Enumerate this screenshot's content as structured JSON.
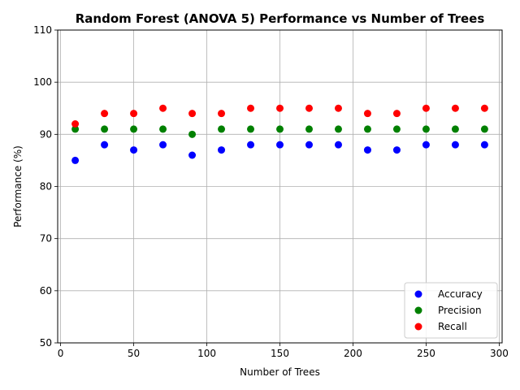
{
  "chart_data": {
    "type": "scatter",
    "title": "Random Forest (ANOVA 5) Performance vs Number of Trees",
    "xlabel": "Number of Trees",
    "ylabel": "Performance (%)",
    "xlim": [
      -2,
      302
    ],
    "ylim": [
      50,
      110
    ],
    "xticks": [
      0,
      50,
      100,
      150,
      200,
      250,
      300
    ],
    "yticks": [
      50,
      60,
      70,
      80,
      90,
      100,
      110
    ],
    "grid": true,
    "legend_position": "lower-right",
    "x": [
      10,
      30,
      50,
      70,
      90,
      110,
      130,
      150,
      170,
      190,
      210,
      230,
      250,
      270,
      290
    ],
    "series": [
      {
        "name": "Accuracy",
        "color": "#0000ff",
        "values": [
          85,
          88,
          87,
          88,
          86,
          87,
          88,
          88,
          88,
          88,
          87,
          87,
          88,
          88,
          88
        ]
      },
      {
        "name": "Precision",
        "color": "#008000",
        "values": [
          91,
          91,
          91,
          91,
          90,
          91,
          91,
          91,
          91,
          91,
          91,
          91,
          91,
          91,
          91
        ]
      },
      {
        "name": "Recall",
        "color": "#ff0000",
        "values": [
          92,
          94,
          94,
          95,
          94,
          94,
          95,
          95,
          95,
          95,
          94,
          94,
          95,
          95,
          95
        ]
      }
    ]
  }
}
